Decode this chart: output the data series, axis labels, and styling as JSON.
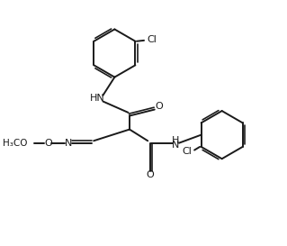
{
  "bg_color": "#ffffff",
  "line_color": "#1a1a1a",
  "text_color": "#1a1a1a",
  "line_width": 1.4,
  "font_size": 8.0,
  "figsize": [
    3.19,
    2.73
  ],
  "dpi": 100,
  "xlim": [
    0,
    10
  ],
  "ylim": [
    0,
    8.57
  ]
}
